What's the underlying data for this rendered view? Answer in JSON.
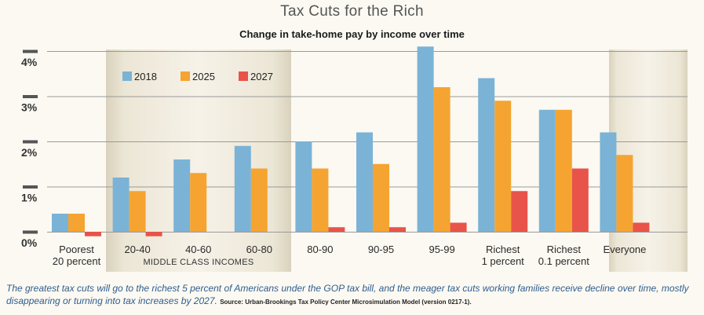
{
  "title": "Tax Cuts for the Rich",
  "caption": "The greatest tax cuts will go to the richest 5 percent of Americans under the GOP tax bill, and the meager tax cuts working families receive decline over time, mostly disappearing or turning into tax increases by 2027.",
  "source": "Source: Urban-Brookings Tax Policy Center Microsimulation Model (version 0217-1).",
  "colors": {
    "2018": "#7ab3d6",
    "2025": "#f5a431",
    "2027": "#e8534a"
  },
  "chart_data": {
    "type": "bar",
    "title": "Change in take-home pay by income over time",
    "categories": [
      "Poorest\n20 percent",
      "20-40",
      "40-60",
      "60-80",
      "80-90",
      "90-95",
      "95-99",
      "Richest\n1 percent",
      "Richest\n0.1 percent",
      "Everyone"
    ],
    "series": [
      {
        "name": "2018",
        "values": [
          0.4,
          1.2,
          1.6,
          1.9,
          2.0,
          2.2,
          4.1,
          3.4,
          2.7,
          2.2
        ]
      },
      {
        "name": "2025",
        "values": [
          0.4,
          0.9,
          1.3,
          1.4,
          1.4,
          1.5,
          3.2,
          2.9,
          2.7,
          1.7
        ]
      },
      {
        "name": "2027",
        "values": [
          -0.1,
          -0.1,
          0.0,
          0.0,
          0.1,
          0.1,
          0.2,
          0.9,
          1.4,
          0.2
        ]
      }
    ],
    "y_tick_labels": [
      "0%",
      "1%",
      "2%",
      "3%",
      "4%"
    ],
    "ylim": [
      0,
      4.2
    ],
    "group_label": "MIDDLE CLASS INCOMES",
    "legend_position": "top-left",
    "grid": true
  }
}
